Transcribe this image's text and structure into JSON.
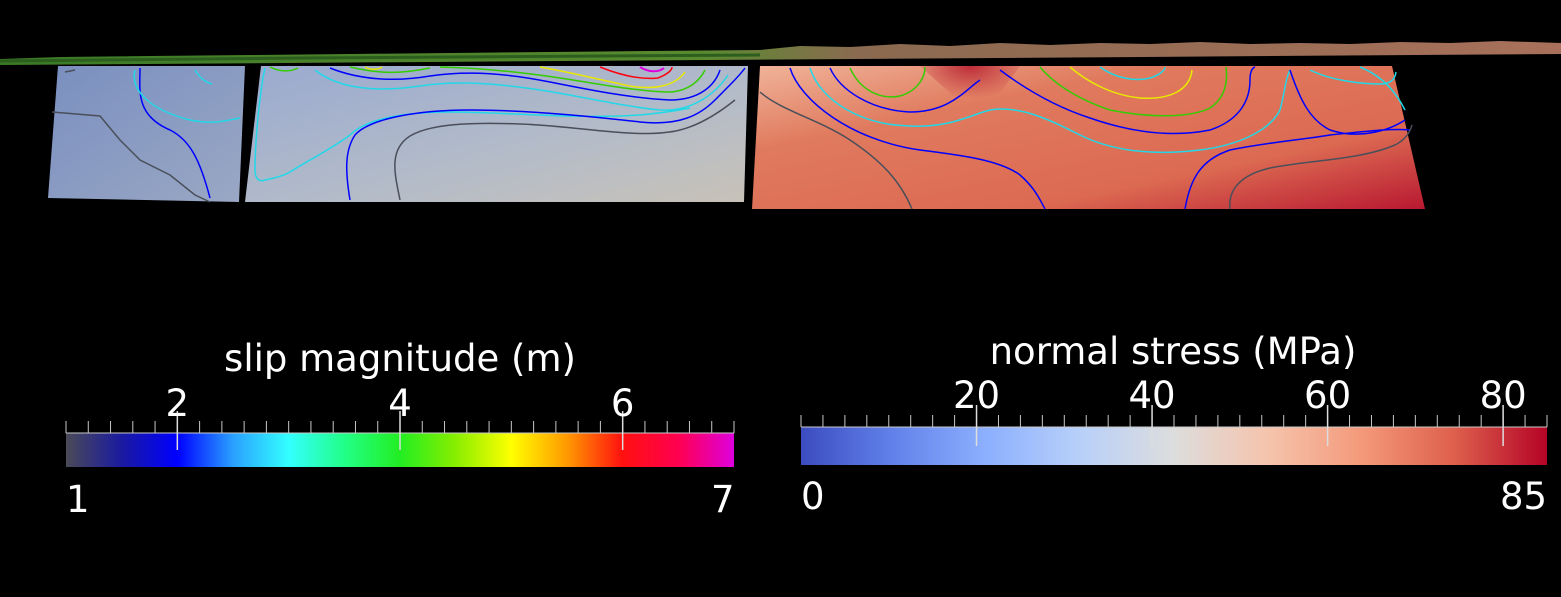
{
  "colors": {
    "background": "#000000",
    "terrain_green": "#3e7f2a",
    "terrain_brown": "#a06a55",
    "contour_blue": "#0000ff",
    "contour_cyan": "#22d8e8",
    "contour_green": "#33cc00",
    "contour_yellow": "#e8e800",
    "contour_red": "#ff0010",
    "contour_magenta": "#dd00dd",
    "contour_gray": "#4a4f5a"
  },
  "slip_colorbar": {
    "title": "slip magnitude (m)",
    "min_label": "1",
    "max_label": "7",
    "ticks": [
      {
        "label": "2",
        "value": 2
      },
      {
        "label": "4",
        "value": 4
      },
      {
        "label": "6",
        "value": 6
      }
    ],
    "range": [
      1,
      7
    ],
    "minor_tick_step": 0.2,
    "gradient": [
      "#4a4a58",
      "#1a1aa0",
      "#0000ff",
      "#2aa0ff",
      "#33ffff",
      "#22ff88",
      "#22ee22",
      "#88ee00",
      "#ffff00",
      "#ff9900",
      "#ff1010",
      "#ff0050",
      "#dd00dd"
    ]
  },
  "stress_colorbar": {
    "title": "normal stress (MPa)",
    "min_label": "0",
    "max_label": "85",
    "ticks": [
      {
        "label": "20",
        "value": 20
      },
      {
        "label": "40",
        "value": 40
      },
      {
        "label": "60",
        "value": 60
      },
      {
        "label": "80",
        "value": 80
      }
    ],
    "range": [
      0,
      85
    ],
    "minor_tick_step": 2.5,
    "gradient": [
      "#3b4cc0",
      "#6282ea",
      "#8db0fe",
      "#b8d0f9",
      "#dddddd",
      "#f5c4ad",
      "#f49a7b",
      "#de604d",
      "#b40426"
    ]
  },
  "fault_panels": {
    "slip_scene": "slip",
    "stress_scene": "stress"
  }
}
